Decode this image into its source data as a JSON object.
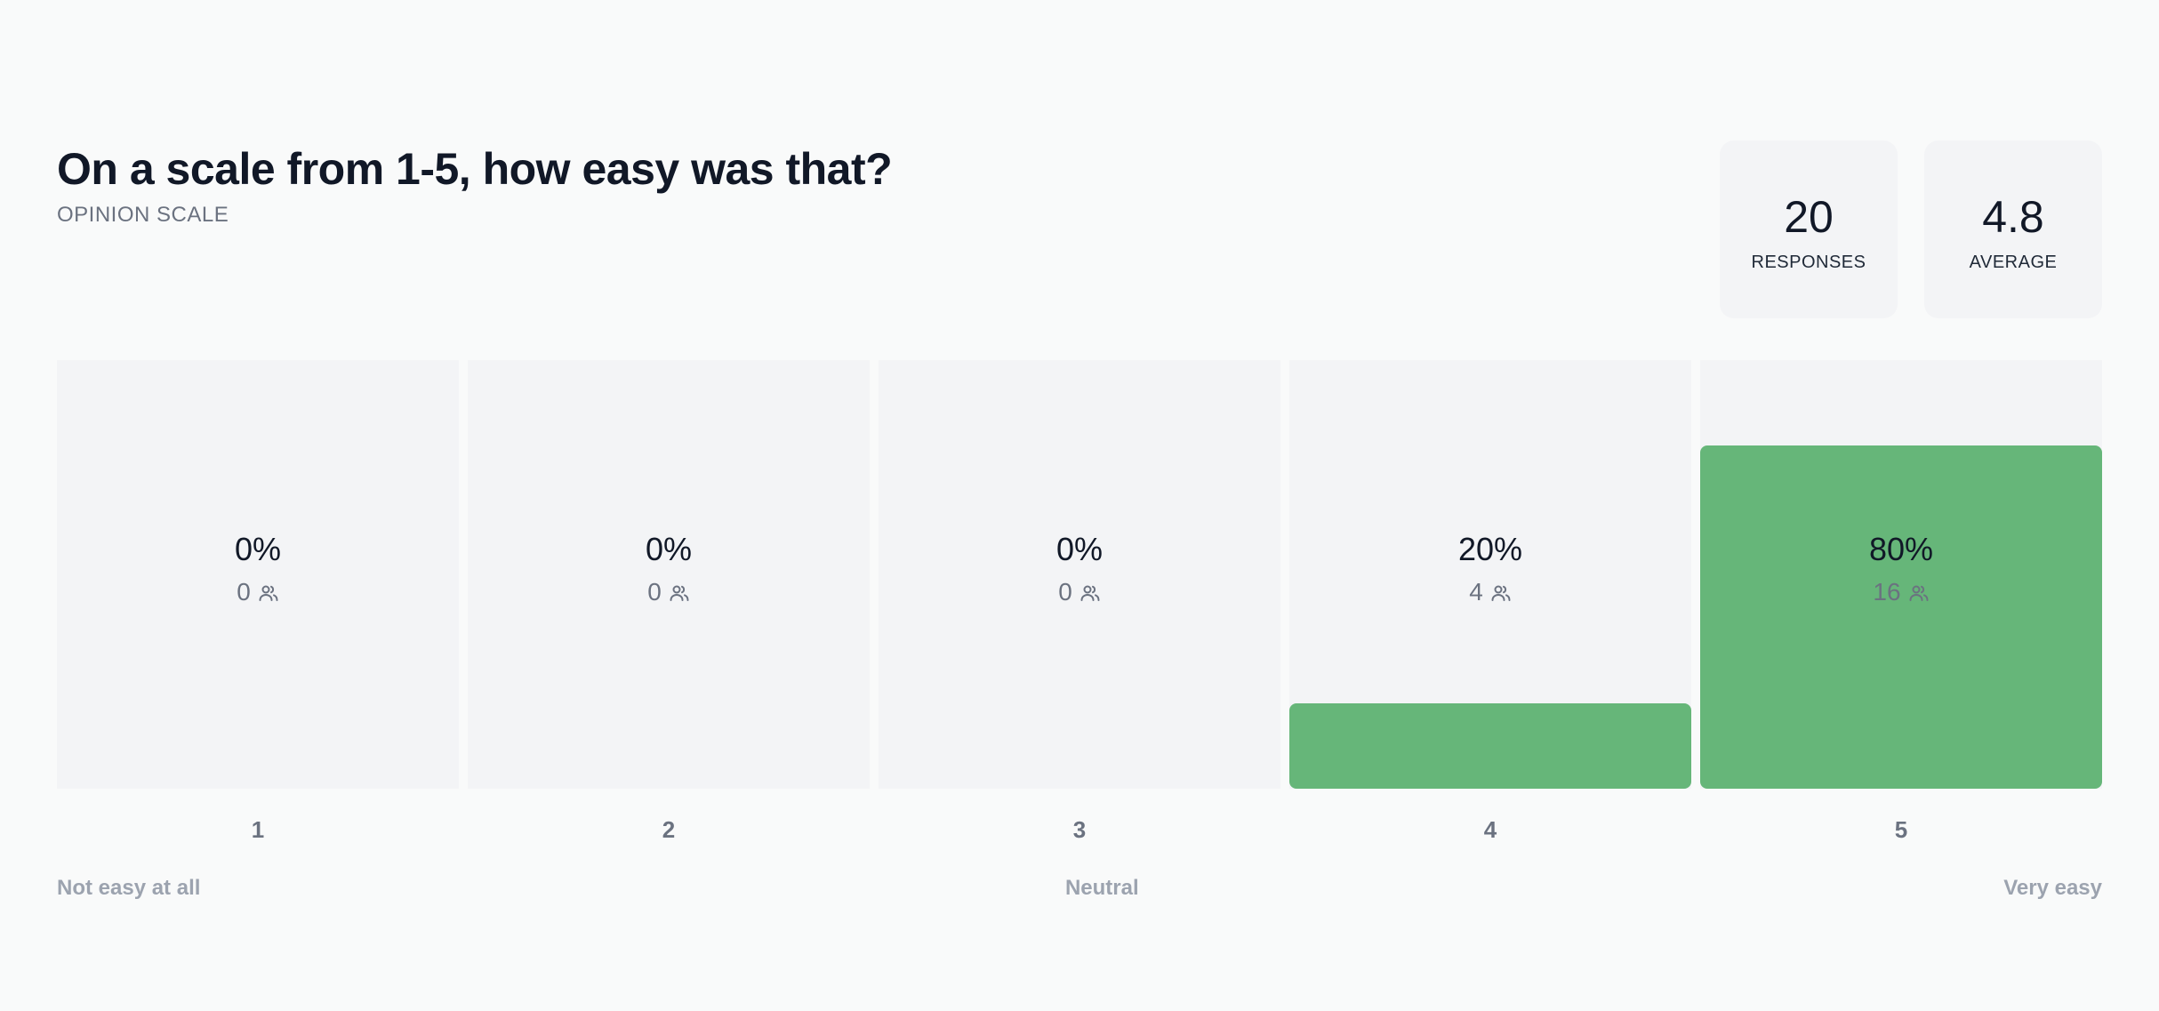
{
  "question": {
    "title": "On a scale from 1-5, how easy was that?",
    "type_label": "OPINION SCALE"
  },
  "stats": {
    "responses": {
      "value": "20",
      "label": "RESPONSES"
    },
    "average": {
      "value": "4.8",
      "label": "AVERAGE"
    }
  },
  "scale_labels": {
    "left": "Not easy at all",
    "middle": "Neutral",
    "right": "Very easy"
  },
  "colors": {
    "fill": "#66b679",
    "track": "#f3f4f6",
    "text": "#111827",
    "muted": "#6b7280"
  },
  "chart_data": {
    "type": "bar",
    "categories": [
      "1",
      "2",
      "3",
      "4",
      "5"
    ],
    "percent_labels": [
      "0%",
      "0%",
      "0%",
      "20%",
      "80%"
    ],
    "counts": [
      "0",
      "0",
      "0",
      "4",
      "16"
    ],
    "values": [
      0,
      0,
      0,
      20,
      80
    ],
    "ylim": [
      0,
      100
    ],
    "grid": false
  }
}
